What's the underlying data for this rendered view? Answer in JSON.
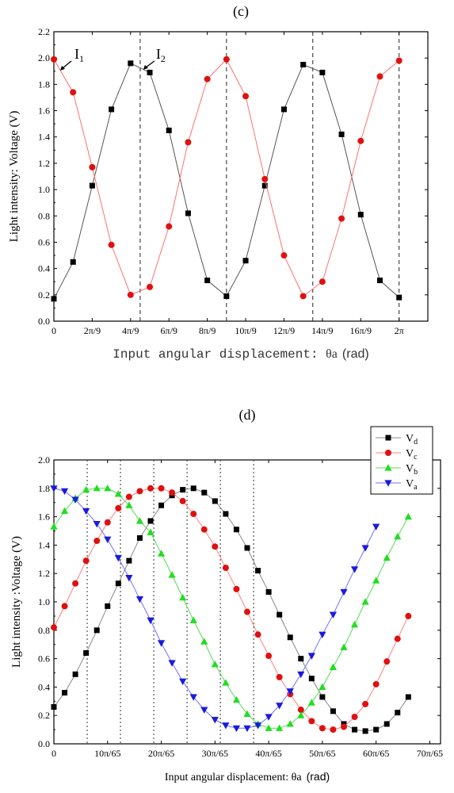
{
  "chart_data": [
    {
      "type": "line",
      "panel_label": "(c)",
      "xlabel_prefix": "Input angular displacement: ",
      "xlabel_symbol": "θa",
      "xlabel_unit": "(rad)",
      "ylabel": "Light intensity: Voltage (V)",
      "xlim_deg": [
        0,
        390
      ],
      "ylim": [
        0,
        2.2
      ],
      "grid": false,
      "x_unit": "degrees",
      "x_ticks": [
        {
          "value": 0,
          "label": "0"
        },
        {
          "value": 40,
          "label": "2π/9"
        },
        {
          "value": 80,
          "label": "4π/9"
        },
        {
          "value": 120,
          "label": "6π/9"
        },
        {
          "value": 160,
          "label": "8π/9"
        },
        {
          "value": 200,
          "label": "10π/9"
        },
        {
          "value": 240,
          "label": "12π/9"
        },
        {
          "value": 280,
          "label": "14π/9"
        },
        {
          "value": 320,
          "label": "16π/9"
        },
        {
          "value": 360,
          "label": "2π"
        }
      ],
      "y_ticks": [
        "0.0",
        "0.2",
        "0.4",
        "0.6",
        "0.8",
        "1.0",
        "1.2",
        "1.4",
        "1.6",
        "1.8",
        "2.0",
        "2.2"
      ],
      "vlines_deg": [
        90,
        180,
        270,
        360
      ],
      "annotations": [
        {
          "text": "I",
          "sub": "1"
        },
        {
          "text": "I",
          "sub": "2"
        }
      ],
      "series": [
        {
          "color": "#000000",
          "line_color": "#555555",
          "marker": "square",
          "x": [
            0,
            20,
            40,
            60,
            80,
            100,
            120,
            140,
            160,
            180,
            200,
            220,
            240,
            260,
            280,
            300,
            320,
            340,
            360
          ],
          "y": [
            0.17,
            0.45,
            1.03,
            1.61,
            1.96,
            1.89,
            1.45,
            0.82,
            0.31,
            0.19,
            0.46,
            1.03,
            1.61,
            1.95,
            1.89,
            1.42,
            0.81,
            0.31,
            0.18
          ]
        },
        {
          "color": "#e01010",
          "line_color": "#ff7070",
          "marker": "circle",
          "x": [
            0,
            20,
            40,
            60,
            80,
            100,
            120,
            140,
            160,
            180,
            200,
            220,
            240,
            260,
            280,
            300,
            320,
            340,
            360
          ],
          "y": [
            1.99,
            1.74,
            1.17,
            0.58,
            0.2,
            0.26,
            0.72,
            1.36,
            1.84,
            1.99,
            1.71,
            1.08,
            0.5,
            0.19,
            0.3,
            0.78,
            1.37,
            1.86,
            1.98
          ]
        }
      ]
    },
    {
      "type": "line",
      "panel_label": "(d)",
      "xlabel_prefix": "Input angular displacement: ",
      "xlabel_symbol": "θa",
      "xlabel_unit": "(rad)",
      "ylabel": "Light intensity :Voltage (V)",
      "xlim": [
        0,
        72
      ],
      "ylim": [
        0,
        2.0
      ],
      "grid": false,
      "x_unit": "pi/65",
      "x_ticks": [
        {
          "value": 0,
          "label": "0"
        },
        {
          "value": 10,
          "label": "10π/65"
        },
        {
          "value": 20,
          "label": "20π/65"
        },
        {
          "value": 30,
          "label": "30π/65"
        },
        {
          "value": 40,
          "label": "40π/65"
        },
        {
          "value": 50,
          "label": "50π/65"
        },
        {
          "value": 60,
          "label": "60π/65"
        },
        {
          "value": 70,
          "label": "70π/65"
        }
      ],
      "y_ticks": [
        "0.0",
        "0.2",
        "0.4",
        "0.6",
        "0.8",
        "1.0",
        "1.2",
        "1.4",
        "1.6",
        "1.8",
        "2.0"
      ],
      "vlines": [
        6.2,
        12.4,
        18.6,
        24.8,
        31.0,
        37.2
      ],
      "legend_position": "top-right",
      "series": [
        {
          "name": "Vd",
          "name_main": "V",
          "name_sub": "d",
          "color": "#000000",
          "line_color": "#888888",
          "marker": "square",
          "x": [
            0,
            2,
            4,
            6,
            8,
            10,
            12,
            14,
            16,
            18,
            20,
            22,
            24,
            26,
            28,
            30,
            32,
            34,
            36,
            38,
            40,
            42,
            44,
            46,
            48,
            50,
            52,
            54,
            56,
            58,
            60,
            62,
            64,
            66
          ],
          "y": [
            0.26,
            0.36,
            0.49,
            0.64,
            0.8,
            0.97,
            1.13,
            1.29,
            1.45,
            1.57,
            1.68,
            1.75,
            1.79,
            1.8,
            1.77,
            1.71,
            1.62,
            1.51,
            1.38,
            1.22,
            1.07,
            0.91,
            0.75,
            0.6,
            0.46,
            0.33,
            0.23,
            0.14,
            0.1,
            0.09,
            0.1,
            0.14,
            0.22,
            0.33
          ]
        },
        {
          "name": "Vc",
          "name_main": "V",
          "name_sub": "c",
          "color": "#e01010",
          "line_color": "#ff8080",
          "marker": "circle",
          "x": [
            0,
            2,
            4,
            6,
            8,
            10,
            12,
            14,
            16,
            18,
            20,
            22,
            24,
            26,
            28,
            30,
            32,
            34,
            36,
            38,
            40,
            42,
            44,
            46,
            48,
            50,
            52,
            54,
            56,
            58,
            60,
            62,
            64,
            66
          ],
          "y": [
            0.82,
            0.97,
            1.13,
            1.29,
            1.43,
            1.56,
            1.66,
            1.74,
            1.78,
            1.8,
            1.8,
            1.77,
            1.71,
            1.62,
            1.51,
            1.39,
            1.24,
            1.09,
            0.93,
            0.77,
            0.62,
            0.47,
            0.35,
            0.24,
            0.16,
            0.11,
            0.1,
            0.12,
            0.19,
            0.28,
            0.42,
            0.58,
            0.74,
            0.9
          ]
        },
        {
          "name": "Vb",
          "name_main": "V",
          "name_sub": "b",
          "color": "#22dd22",
          "line_color": "#55dd55",
          "marker": "triangle-up",
          "x": [
            0,
            2,
            4,
            6,
            8,
            10,
            12,
            14,
            16,
            18,
            20,
            22,
            24,
            26,
            28,
            30,
            32,
            34,
            36,
            38,
            40,
            42,
            44,
            46,
            48,
            50,
            52,
            54,
            56,
            58,
            60,
            62,
            64,
            66
          ],
          "y": [
            1.53,
            1.64,
            1.73,
            1.79,
            1.8,
            1.8,
            1.76,
            1.68,
            1.57,
            1.49,
            1.34,
            1.19,
            1.03,
            0.87,
            0.72,
            0.56,
            0.43,
            0.31,
            0.21,
            0.14,
            0.11,
            0.11,
            0.14,
            0.2,
            0.29,
            0.4,
            0.54,
            0.68,
            0.84,
            1.0,
            1.15,
            1.31,
            1.46,
            1.6
          ]
        },
        {
          "name": "Va",
          "name_main": "V",
          "name_sub": "a",
          "color": "#1a1adf",
          "line_color": "#7070ff",
          "marker": "triangle-down",
          "x": [
            0,
            2,
            4,
            6,
            8,
            10,
            12,
            14,
            16,
            18,
            20,
            22,
            24,
            26,
            28,
            30,
            32,
            34,
            36,
            38,
            40,
            42,
            44,
            46,
            48,
            50,
            52,
            54,
            56,
            58,
            60
          ],
          "y": [
            1.8,
            1.78,
            1.72,
            1.64,
            1.55,
            1.44,
            1.31,
            1.17,
            1.02,
            0.87,
            0.71,
            0.57,
            0.44,
            0.33,
            0.24,
            0.17,
            0.13,
            0.11,
            0.11,
            0.13,
            0.19,
            0.27,
            0.37,
            0.49,
            0.62,
            0.77,
            0.91,
            1.07,
            1.23,
            1.38,
            1.53
          ]
        }
      ]
    }
  ]
}
